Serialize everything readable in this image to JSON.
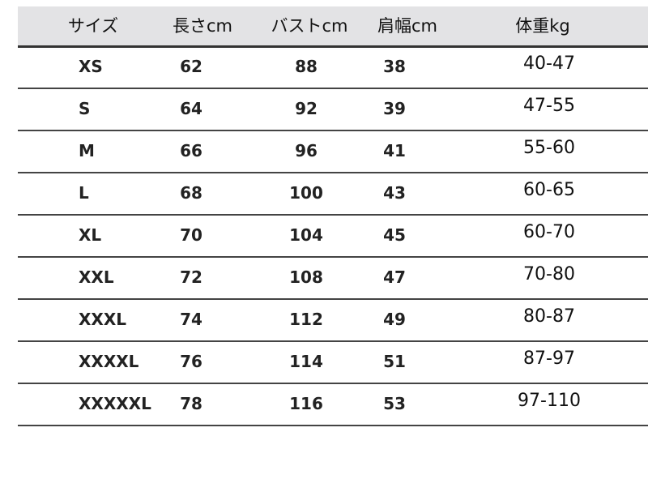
{
  "table": {
    "headers": [
      "サイズ",
      "長さcm",
      "バストcm",
      "肩幅cm",
      "体重kg"
    ],
    "rows": [
      [
        "XS",
        "62",
        "88",
        "38",
        "40-47"
      ],
      [
        "S",
        "64",
        "92",
        "39",
        "47-55"
      ],
      [
        "M",
        "66",
        "96",
        "41",
        "55-60"
      ],
      [
        "L",
        "68",
        "100",
        "43",
        "60-65"
      ],
      [
        "XL",
        "70",
        "104",
        "45",
        "60-70"
      ],
      [
        "XXL",
        "72",
        "108",
        "47",
        "70-80"
      ],
      [
        "XXXL",
        "74",
        "112",
        "49",
        "80-87"
      ],
      [
        "XXXXL",
        "76",
        "114",
        "51",
        "87-97"
      ],
      [
        "XXXXXL",
        "78",
        "116",
        "53",
        "97-110"
      ]
    ]
  }
}
